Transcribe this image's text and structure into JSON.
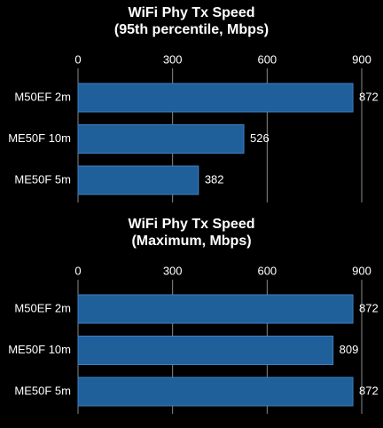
{
  "chart_data": [
    {
      "type": "barh",
      "title": [
        "WiFi Phy Tx Speed",
        "(95th percentile, Mbps)"
      ],
      "categories": [
        "M50EF 2m",
        "ME50F 10m",
        "ME50F 5m"
      ],
      "values": [
        872,
        526,
        382
      ],
      "color": "#1f5f9a",
      "xlim": [
        0,
        900
      ],
      "xticks": [
        0,
        300,
        600,
        900
      ],
      "grid": true
    },
    {
      "type": "barh",
      "title": [
        "WiFi Phy Tx Speed",
        "(Maximum, Mbps)"
      ],
      "categories": [
        "M50EF 2m",
        "ME50F 10m",
        "ME50F 5m"
      ],
      "values": [
        872,
        809,
        872
      ],
      "color": "#1f5f9a",
      "xlim": [
        0,
        900
      ],
      "xticks": [
        0,
        300,
        600,
        900
      ],
      "grid": true
    }
  ]
}
